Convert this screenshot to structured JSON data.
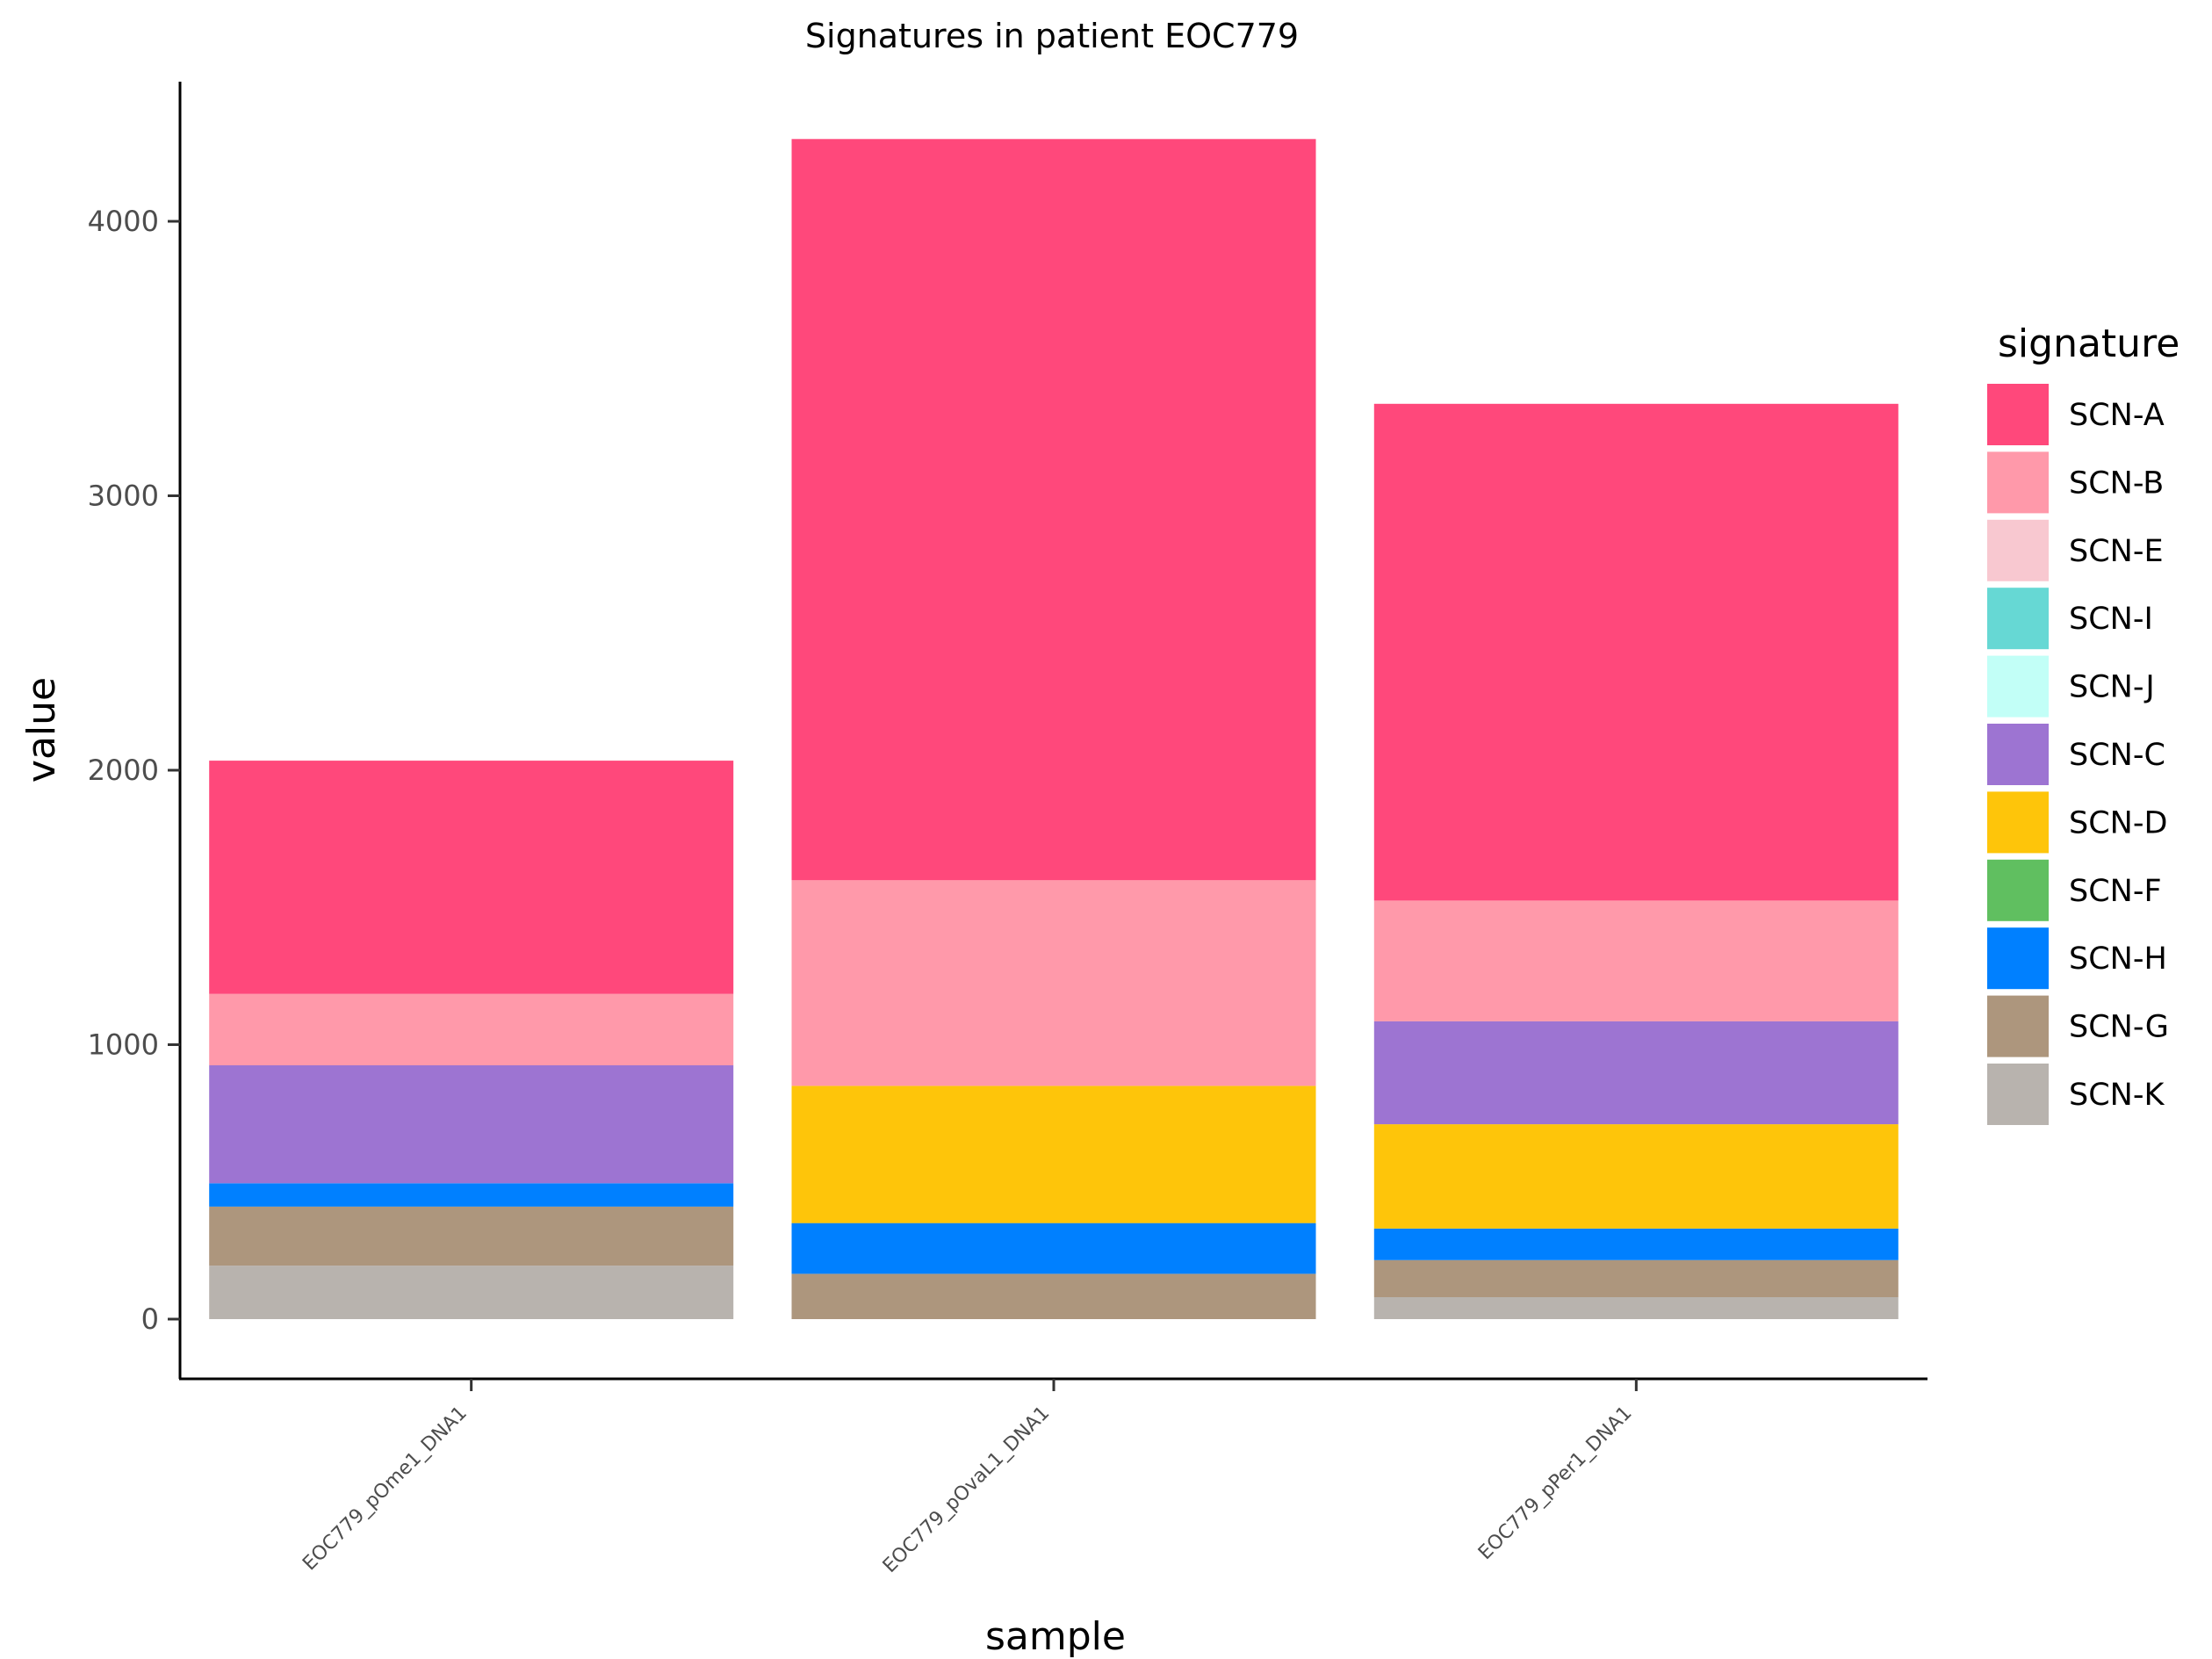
{
  "chart_data": {
    "type": "bar",
    "stacked": true,
    "title": "Signatures in patient EOC779",
    "xlabel": "sample",
    "ylabel": "value",
    "categories": [
      "EOC779_pOme1_DNA1",
      "EOC779_pOvaL1_DNA1",
      "EOC779_pPer1_DNA1"
    ],
    "y_ticks": [
      0,
      1000,
      2000,
      3000,
      4000
    ],
    "ylim": [
      -210,
      4510
    ],
    "legend": {
      "title": "signature",
      "position": "right",
      "entries": [
        "SCN-A",
        "SCN-B",
        "SCN-E",
        "SCN-I",
        "SCN-J",
        "SCN-C",
        "SCN-D",
        "SCN-F",
        "SCN-H",
        "SCN-G",
        "SCN-K"
      ]
    },
    "grid": false,
    "series": [
      {
        "name": "SCN-A",
        "color": "#FF487B",
        "values": [
          850,
          2700,
          1810
        ]
      },
      {
        "name": "SCN-B",
        "color": "#FF99AA",
        "values": [
          260,
          750,
          440
        ]
      },
      {
        "name": "SCN-E",
        "color": "#F8C8D0",
        "values": [
          0,
          0,
          0
        ]
      },
      {
        "name": "SCN-I",
        "color": "#66D8D4",
        "values": [
          0,
          0,
          0
        ]
      },
      {
        "name": "SCN-J",
        "color": "#C2FFF7",
        "values": [
          0,
          0,
          0
        ]
      },
      {
        "name": "SCN-C",
        "color": "#9D74D2",
        "values": [
          430,
          0,
          375
        ]
      },
      {
        "name": "SCN-D",
        "color": "#FEC50A",
        "values": [
          0,
          500,
          380
        ]
      },
      {
        "name": "SCN-F",
        "color": "#60BF60",
        "values": [
          0,
          0,
          0
        ]
      },
      {
        "name": "SCN-H",
        "color": "#0080FF",
        "values": [
          85,
          185,
          115
        ]
      },
      {
        "name": "SCN-G",
        "color": "#AD967D",
        "values": [
          215,
          165,
          135
        ]
      },
      {
        "name": "SCN-K",
        "color": "#B8B3AE",
        "values": [
          195,
          0,
          80
        ]
      }
    ]
  }
}
